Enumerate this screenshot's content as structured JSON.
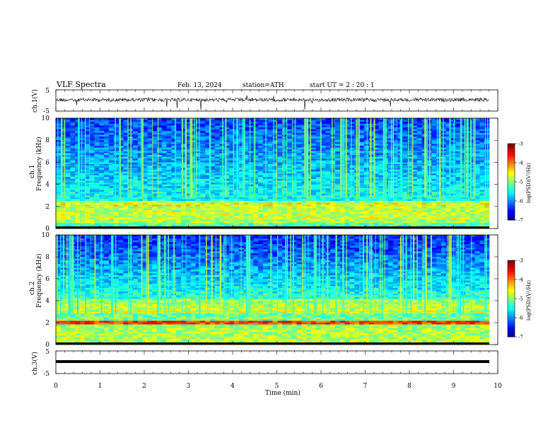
{
  "header": {
    "title": "VLF  Spectra",
    "date": "Feb. 13, 2024",
    "station": "station=ATH",
    "start": "start  UT  =   2  : 20 : 1"
  },
  "chart_data": [
    {
      "type": "line",
      "panel": "ch1-waveform",
      "ylabel": "ch.1(V)",
      "ylim": [
        -5,
        5
      ],
      "yticks": [
        "5",
        "-5"
      ],
      "x": [
        0,
        10
      ],
      "description_level": 0.3
    },
    {
      "type": "heatmap",
      "panel": "ch1-spectrogram",
      "ylabel": "ch.1",
      "ylabel2": "Frequency  (kHz)",
      "ylim": [
        0,
        10
      ],
      "yticks": [
        "0",
        "2",
        "4",
        "6",
        "8",
        "10"
      ],
      "xlim": [
        0,
        9.8
      ],
      "colorbar": {
        "label": "log(PSD)(V²/Hz)",
        "ticks": [
          "-3",
          "-4",
          "-5",
          "-6",
          "-7"
        ],
        "range": [
          -7,
          -3
        ]
      }
    },
    {
      "type": "heatmap",
      "panel": "ch2-spectrogram",
      "ylabel": "ch.2",
      "ylabel2": "Frequency  (kHz)",
      "ylim": [
        0,
        10
      ],
      "yticks": [
        "0",
        "2",
        "4",
        "6",
        "8",
        "10"
      ],
      "xlim": [
        0,
        9.8
      ],
      "colorbar": {
        "label": "log(PSD)(V²/Hz)",
        "ticks": [
          "-3",
          "-4",
          "-5",
          "-6",
          "-7"
        ],
        "range": [
          -7,
          -3
        ]
      }
    },
    {
      "type": "line",
      "panel": "ch3-waveform",
      "ylabel": "ch.3(V)",
      "ylim": [
        -5,
        5
      ],
      "yticks": [
        "5",
        "-5"
      ],
      "xlabel": "Time  (min)",
      "xticks": [
        "0",
        "1",
        "2",
        "3",
        "4",
        "5",
        "6",
        "7",
        "8",
        "9",
        "10"
      ]
    }
  ]
}
